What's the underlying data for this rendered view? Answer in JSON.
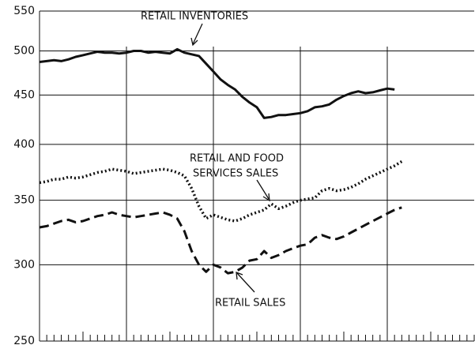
{
  "chart_data": {
    "type": "line",
    "log_y": true,
    "grid": true,
    "ylim": [
      250,
      550
    ],
    "yticks": [
      250,
      300,
      350,
      400,
      450,
      500,
      550
    ],
    "categories": [
      null,
      null,
      null,
      null,
      null,
      null,
      null,
      null,
      null,
      null,
      null,
      null,
      null,
      null,
      null,
      null,
      null,
      null,
      null,
      null,
      null,
      null,
      null,
      null,
      null,
      null,
      null,
      null,
      null,
      null,
      null,
      null,
      null,
      null,
      null,
      null,
      null,
      null,
      null,
      null,
      null,
      null,
      null,
      null,
      null,
      null,
      null,
      null,
      null,
      null,
      null,
      null,
      null,
      null,
      null,
      null,
      null,
      null,
      null,
      null
    ],
    "series": [
      {
        "name": "RETAIL INVENTORIES",
        "color": "#111111",
        "dash": "solid",
        "values": [
          487,
          488,
          489,
          488,
          490,
          493,
          495,
          497,
          499,
          498,
          498,
          497,
          498,
          500,
          500,
          498,
          499,
          498,
          497,
          502,
          498,
          496,
          494,
          485,
          476,
          467,
          461,
          456,
          448,
          442,
          437,
          426,
          427,
          429,
          429,
          430,
          431,
          433,
          437,
          438,
          440,
          445,
          449,
          452,
          454,
          452,
          453,
          455,
          457,
          456,
          null,
          null,
          null,
          null,
          null,
          null,
          null,
          null,
          null,
          null
        ]
      },
      {
        "name": "RETAIL AND FOOD SERVICES SALES",
        "color": "#111111",
        "dash": "dotted",
        "values": [
          365,
          366,
          368,
          368,
          370,
          369,
          370,
          372,
          374,
          375,
          377,
          376,
          375,
          373,
          374,
          375,
          376,
          377,
          376,
          374,
          371,
          360,
          345,
          335,
          338,
          336,
          334,
          333,
          335,
          338,
          340,
          342,
          347,
          343,
          345,
          348,
          350,
          351,
          352,
          358,
          360,
          358,
          359,
          361,
          364,
          368,
          371,
          374,
          377,
          380,
          384,
          null,
          null,
          null,
          null,
          null,
          null,
          null,
          null,
          null
        ]
      },
      {
        "name": "RETAIL SALES",
        "color": "#111111",
        "dash": "dashed",
        "values": [
          328,
          329,
          331,
          333,
          334,
          332,
          333,
          335,
          337,
          338,
          340,
          338,
          337,
          336,
          337,
          338,
          339,
          340,
          338,
          335,
          325,
          310,
          300,
          295,
          300,
          298,
          294,
          295,
          298,
          303,
          304,
          310,
          305,
          307,
          310,
          312,
          314,
          315,
          320,
          322,
          320,
          319,
          321,
          324,
          327,
          330,
          333,
          336,
          339,
          342,
          344,
          null,
          null,
          null,
          null,
          null,
          null,
          null,
          null,
          null
        ]
      }
    ],
    "annotations": [
      "RETAIL INVENTORIES",
      "RETAIL AND FOOD",
      "SERVICES SALES",
      "RETAIL SALES"
    ]
  }
}
